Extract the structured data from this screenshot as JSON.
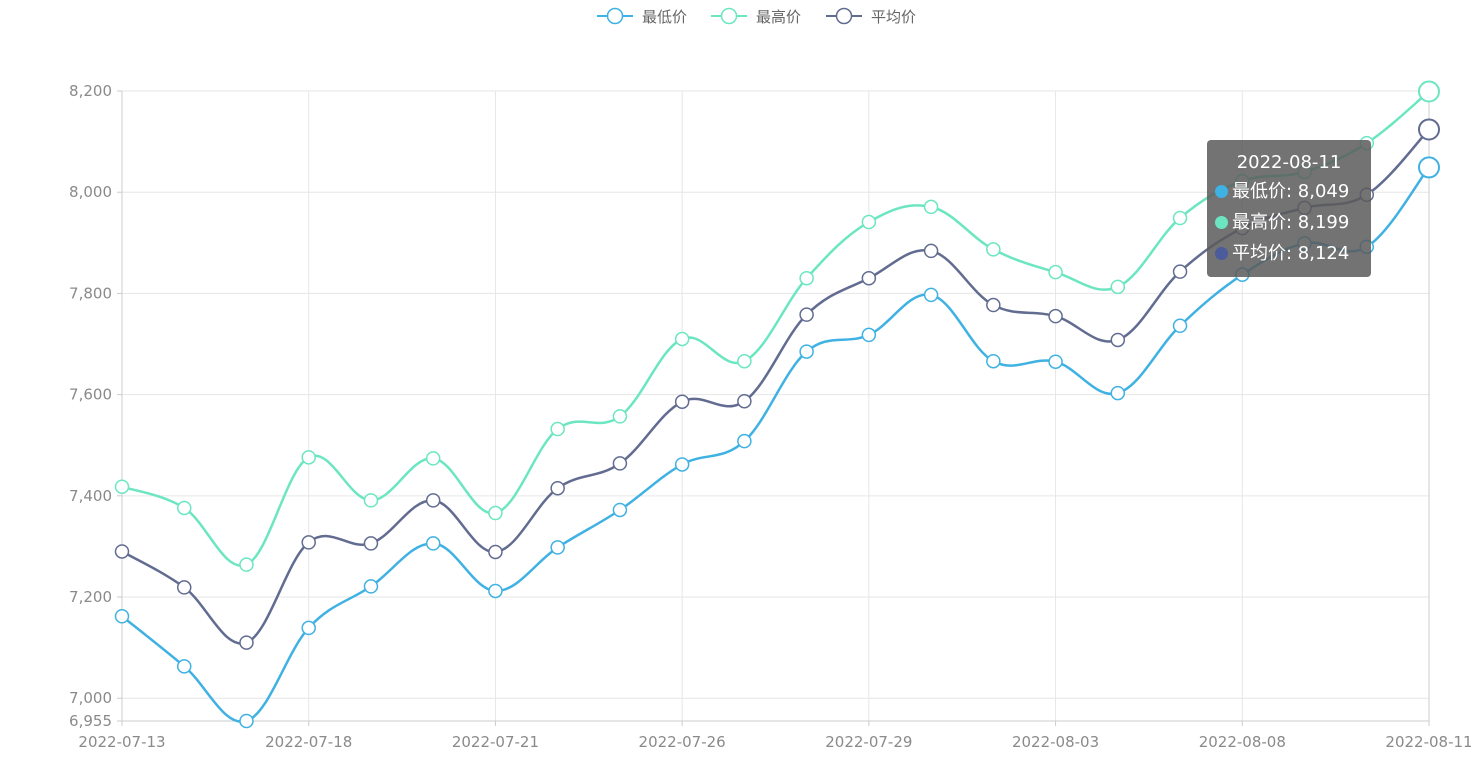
{
  "chart_data": {
    "type": "line",
    "smooth": true,
    "legend_position": "top-center",
    "grid": true,
    "x_tick_labels": [
      "2022-07-13",
      "2022-07-18",
      "2022-07-21",
      "2022-07-26",
      "2022-07-29",
      "2022-08-03",
      "2022-08-08",
      "2022-08-11"
    ],
    "x_tick_index": [
      0,
      3,
      6,
      9,
      12,
      15,
      18,
      21
    ],
    "x": [
      "2022-07-13",
      "2022-07-14",
      "2022-07-15",
      "2022-07-18",
      "2022-07-19",
      "2022-07-20",
      "2022-07-21",
      "2022-07-22",
      "2022-07-25",
      "2022-07-26",
      "2022-07-27",
      "2022-07-28",
      "2022-07-29",
      "2022-08-01",
      "2022-08-02",
      "2022-08-03",
      "2022-08-04",
      "2022-08-05",
      "2022-08-08",
      "2022-08-09",
      "2022-08-10",
      "2022-08-11"
    ],
    "ylim": [
      6955,
      8200
    ],
    "y_tick_labels": [
      "6,955",
      "7,000",
      "7,200",
      "7,400",
      "7,600",
      "7,800",
      "8,000",
      "8,200"
    ],
    "y_tick_values": [
      6955,
      7000,
      7200,
      7400,
      7600,
      7800,
      8000,
      8200
    ],
    "series": [
      {
        "name": "最低价",
        "color": "#3fb1e3",
        "values": [
          7162,
          7063,
          6955,
          7139,
          7221,
          7306,
          7212,
          7298,
          7372,
          7462,
          7508,
          7685,
          7718,
          7797,
          7666,
          7665,
          7603,
          7736,
          7837,
          7899,
          7892,
          8049
        ]
      },
      {
        "name": "最高价",
        "color": "#6be6c1",
        "values": [
          7418,
          7376,
          7264,
          7476,
          7391,
          7474,
          7366,
          7532,
          7557,
          7710,
          7666,
          7830,
          7941,
          7971,
          7887,
          7842,
          7813,
          7949,
          8022,
          8040,
          8097,
          8199
        ]
      },
      {
        "name": "平均价",
        "color": "#626c91",
        "values": [
          7290,
          7219,
          7110,
          7308,
          7306,
          7391,
          7289,
          7415,
          7464,
          7586,
          7587,
          7758,
          7830,
          7884,
          7777,
          7755,
          7708,
          7843,
          7929,
          7969,
          7995,
          8124
        ]
      }
    ],
    "tooltip": {
      "title": "2022-08-11",
      "rows": [
        {
          "label": "最低价: 8,049",
          "color": "#3fb1e3"
        },
        {
          "label": "最高价: 8,199",
          "color": "#6be6c1"
        },
        {
          "label": "平均价: 8,124",
          "color": "#4b5b9b"
        }
      ]
    }
  }
}
